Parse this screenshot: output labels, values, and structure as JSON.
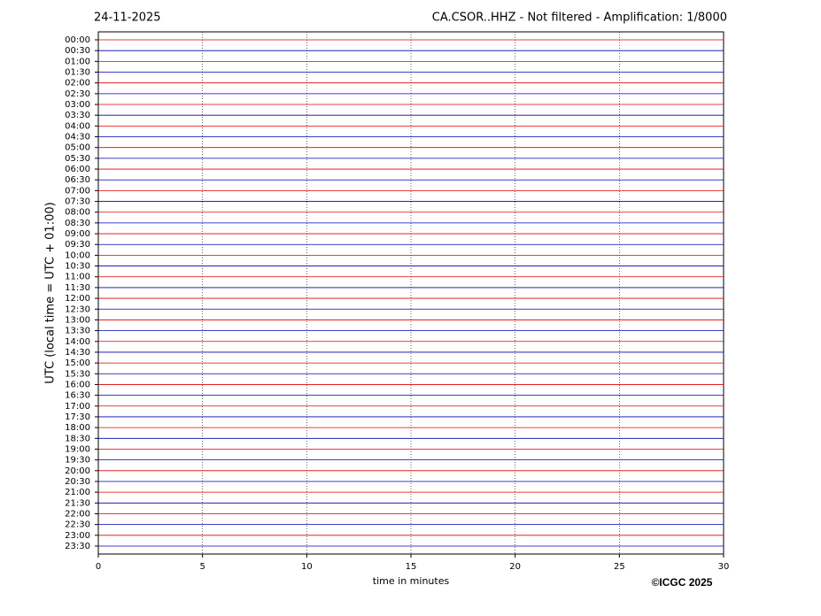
{
  "chart_data": {
    "type": "helicorder",
    "date": "24-11-2025",
    "title": "CA.CSOR..HHZ - Not filtered - Amplification: 1/8000",
    "y_label": "UTC (local time = UTC + 01:00)",
    "x_label": "time in minutes",
    "credit": "©ICGC 2025",
    "categories": [
      "00:00",
      "00:30",
      "01:00",
      "01:30",
      "02:00",
      "02:30",
      "03:00",
      "03:30",
      "04:00",
      "04:30",
      "05:00",
      "05:30",
      "06:00",
      "06:30",
      "07:00",
      "07:30",
      "08:00",
      "08:30",
      "09:00",
      "09:30",
      "10:00",
      "10:30",
      "11:00",
      "11:30",
      "12:00",
      "12:30",
      "13:00",
      "13:30",
      "14:00",
      "14:30",
      "15:00",
      "15:30",
      "16:00",
      "16:30",
      "17:00",
      "17:30",
      "18:00",
      "18:30",
      "19:00",
      "19:30",
      "20:00",
      "20:30",
      "21:00",
      "21:30",
      "22:00",
      "22:30",
      "23:00",
      "23:30"
    ],
    "colors": [
      "#e00000",
      "#0000b0"
    ],
    "xlim": [
      0,
      30
    ],
    "xticks": [
      0,
      5,
      10,
      15,
      20,
      25,
      30
    ],
    "grid": true
  }
}
